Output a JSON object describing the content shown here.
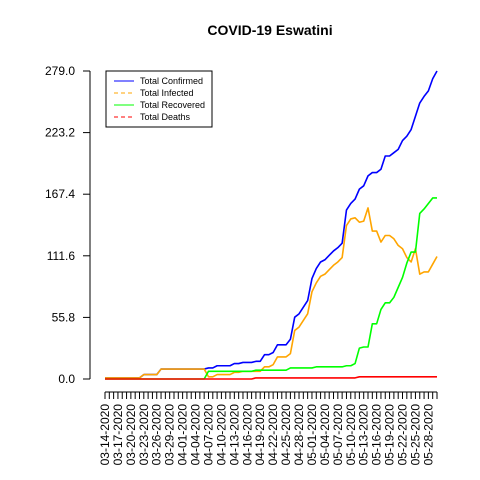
{
  "chart_data": {
    "type": "line",
    "title": "COVID-19 Eswatini",
    "xlabel": "",
    "ylabel": "",
    "start_date": "03-14-2020",
    "x_ticks": [
      "03-14-2020",
      "03-17-2020",
      "03-20-2020",
      "03-23-2020",
      "03-26-2020",
      "03-29-2020",
      "04-01-2020",
      "04-04-2020",
      "04-07-2020",
      "04-10-2020",
      "04-13-2020",
      "04-16-2020",
      "04-19-2020",
      "04-22-2020",
      "04-25-2020",
      "04-28-2020",
      "05-01-2020",
      "05-04-2020",
      "05-07-2020",
      "05-10-2020",
      "05-13-2020",
      "05-16-2020",
      "05-19-2020",
      "05-22-2020",
      "05-25-2020",
      "05-28-2020"
    ],
    "y_ticks": [
      "0.0",
      "55.8",
      "111.6",
      "167.4",
      "223.2",
      "279.0"
    ],
    "ylim": [
      0,
      279
    ],
    "legend_position": "top-left",
    "series": [
      {
        "name": "Total Confirmed",
        "color": "#0000ff",
        "values": [
          1,
          1,
          1,
          1,
          1,
          1,
          1,
          1,
          1,
          4,
          4,
          4,
          4,
          9,
          9,
          9,
          9,
          9,
          9,
          9,
          9,
          9,
          9,
          9,
          10,
          10,
          12,
          12,
          12,
          12,
          14,
          14,
          15,
          15,
          15,
          16,
          16,
          22,
          22,
          24,
          31,
          31,
          31,
          36,
          56,
          59,
          65,
          71,
          91,
          100,
          106,
          108,
          112,
          116,
          119,
          123,
          153,
          159,
          163,
          172,
          175,
          184,
          187,
          187,
          190,
          202,
          202,
          205,
          208,
          216,
          220,
          226,
          238,
          250,
          256,
          261,
          272,
          279
        ]
      },
      {
        "name": "Total Infected",
        "color": "#ffa500",
        "values": [
          1,
          1,
          1,
          1,
          1,
          1,
          1,
          1,
          1,
          4,
          4,
          4,
          4,
          9,
          9,
          9,
          9,
          9,
          9,
          9,
          9,
          9,
          9,
          9,
          2,
          2,
          4,
          4,
          4,
          4,
          6,
          6,
          7,
          7,
          7,
          7,
          7,
          11,
          11,
          13,
          20,
          20,
          20,
          23,
          44,
          47,
          53,
          59,
          79,
          87,
          93,
          95,
          99,
          103,
          106,
          110,
          139,
          145,
          146,
          142,
          143,
          155,
          134,
          134,
          124,
          130,
          130,
          127,
          121,
          118,
          110,
          106,
          118,
          95,
          97,
          97,
          104,
          111
        ]
      },
      {
        "name": "Total Recovered",
        "color": "#00ff00",
        "values": [
          0,
          0,
          0,
          0,
          0,
          0,
          0,
          0,
          0,
          0,
          0,
          0,
          0,
          0,
          0,
          0,
          0,
          0,
          0,
          0,
          0,
          0,
          0,
          0,
          7,
          7,
          7,
          7,
          7,
          7,
          7,
          7,
          7,
          7,
          7,
          8,
          8,
          8,
          8,
          8,
          8,
          8,
          8,
          10,
          10,
          10,
          10,
          10,
          10,
          11,
          11,
          11,
          11,
          11,
          11,
          11,
          12,
          12,
          14,
          28,
          29,
          29,
          50,
          50,
          63,
          69,
          69,
          74,
          83,
          92,
          105,
          115,
          115,
          150,
          154,
          159,
          164,
          164
        ]
      },
      {
        "name": "Total Deaths",
        "color": "#ff0000",
        "values": [
          0,
          0,
          0,
          0,
          0,
          0,
          0,
          0,
          0,
          0,
          0,
          0,
          0,
          0,
          0,
          0,
          0,
          0,
          0,
          0,
          0,
          0,
          0,
          0,
          0,
          0,
          0,
          0,
          0,
          0,
          0,
          0,
          0,
          0,
          0,
          1,
          1,
          1,
          1,
          1,
          1,
          1,
          1,
          1,
          1,
          1,
          1,
          1,
          1,
          1,
          1,
          1,
          1,
          1,
          1,
          1,
          1,
          1,
          1,
          2,
          2,
          2,
          2,
          2,
          2,
          2,
          2,
          2,
          2,
          2,
          2,
          2,
          2,
          2,
          2,
          2,
          2,
          2
        ]
      }
    ]
  }
}
